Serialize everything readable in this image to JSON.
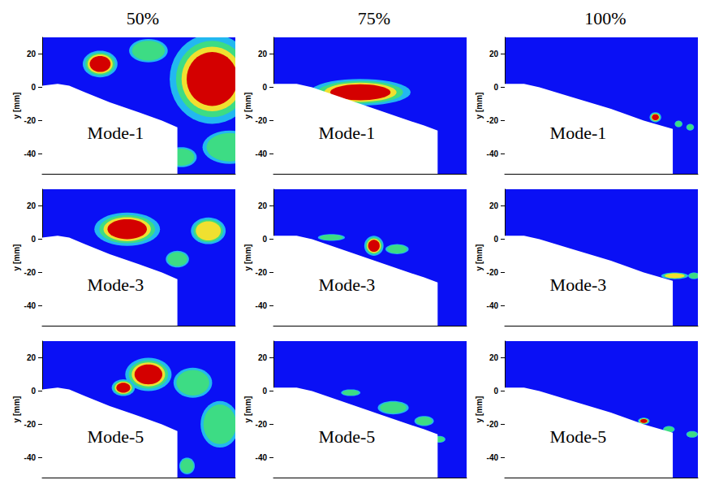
{
  "columns": [
    "50%",
    "75%",
    "100%"
  ],
  "chart_data": [
    {
      "type": "contour",
      "title": "Mode-1",
      "y_label": "y [mm]",
      "xlim": [
        0,
        100
      ],
      "ylim": [
        -52,
        30
      ],
      "yticks": [
        -40,
        -20,
        0,
        20
      ],
      "tick_labels": "y",
      "body": [
        [
          0,
          1
        ],
        [
          8,
          2
        ],
        [
          14,
          1
        ],
        [
          22,
          -3
        ],
        [
          35,
          -9
        ],
        [
          50,
          -15
        ],
        [
          62,
          -20
        ],
        [
          70,
          -24
        ],
        [
          70,
          -60
        ],
        [
          0,
          -60
        ]
      ],
      "regions": [
        {
          "x": 88,
          "y": 5,
          "rx": 22,
          "ry": 27,
          "level": 1
        },
        {
          "x": 30,
          "y": 14,
          "rx": 9,
          "ry": 8,
          "level": 1
        },
        {
          "x": 97,
          "y": -36,
          "rx": 14,
          "ry": 10,
          "level": 0.5
        },
        {
          "x": 55,
          "y": 22,
          "rx": 10,
          "ry": 7,
          "level": 0.4
        },
        {
          "x": 72,
          "y": -42,
          "rx": 8,
          "ry": 6,
          "level": 0.3
        }
      ]
    },
    {
      "type": "contour",
      "title": "Mode-1",
      "y_label": "y [mm]",
      "xlim": [
        0,
        100
      ],
      "ylim": [
        -52,
        30
      ],
      "yticks": [
        -40,
        -20,
        0,
        20
      ],
      "tick_labels": "y",
      "body": [
        [
          0,
          2
        ],
        [
          12,
          2
        ],
        [
          20,
          0
        ],
        [
          35,
          -6
        ],
        [
          50,
          -12
        ],
        [
          65,
          -18
        ],
        [
          78,
          -23
        ],
        [
          85,
          -26
        ],
        [
          85,
          -60
        ],
        [
          0,
          -60
        ]
      ],
      "regions": [
        {
          "x": 45,
          "y": -3,
          "rx": 26,
          "ry": 8,
          "level": 1
        }
      ],
      "_": null
    },
    {
      "type": "contour",
      "title": "Mode-1",
      "y_label": "y [mm]",
      "xlim": [
        0,
        100
      ],
      "ylim": [
        -52,
        30
      ],
      "yticks": [
        -40,
        -20,
        0,
        20
      ],
      "tick_labels": "y",
      "body": [
        [
          0,
          2
        ],
        [
          10,
          2
        ],
        [
          18,
          0
        ],
        [
          35,
          -6
        ],
        [
          55,
          -13
        ],
        [
          72,
          -20
        ],
        [
          87,
          -25
        ],
        [
          87,
          -60
        ],
        [
          0,
          -60
        ]
      ],
      "regions": [
        {
          "x": 78,
          "y": -18,
          "rx": 3,
          "ry": 3,
          "level": 1
        },
        {
          "x": 90,
          "y": -22,
          "rx": 2,
          "ry": 2,
          "level": 0.3
        },
        {
          "x": 96,
          "y": -24,
          "rx": 2,
          "ry": 2,
          "level": 0.3
        }
      ]
    },
    {
      "type": "contour",
      "title": "Mode-3",
      "y_label": "y [mm]",
      "xlim": [
        0,
        100
      ],
      "ylim": [
        -52,
        30
      ],
      "yticks": [
        -40,
        -20,
        0,
        20
      ],
      "tick_labels": "y",
      "body": [
        [
          0,
          1
        ],
        [
          8,
          2
        ],
        [
          14,
          1
        ],
        [
          22,
          -3
        ],
        [
          35,
          -9
        ],
        [
          50,
          -15
        ],
        [
          62,
          -20
        ],
        [
          70,
          -24
        ],
        [
          70,
          -60
        ],
        [
          0,
          -60
        ]
      ],
      "regions": [
        {
          "x": 44,
          "y": 6,
          "rx": 17,
          "ry": 10,
          "level": 1
        },
        {
          "x": 86,
          "y": 5,
          "rx": 9,
          "ry": 8,
          "level": 0.6
        },
        {
          "x": 70,
          "y": -12,
          "rx": 6,
          "ry": 5,
          "level": 0.3
        }
      ]
    },
    {
      "type": "contour",
      "title": "Mode-3",
      "y_label": "y [mm]",
      "xlim": [
        0,
        100
      ],
      "ylim": [
        -52,
        30
      ],
      "yticks": [
        -40,
        -20,
        0,
        20
      ],
      "tick_labels": "y",
      "body": [
        [
          0,
          2
        ],
        [
          12,
          2
        ],
        [
          20,
          0
        ],
        [
          35,
          -6
        ],
        [
          50,
          -12
        ],
        [
          65,
          -18
        ],
        [
          78,
          -23
        ],
        [
          85,
          -26
        ],
        [
          85,
          -60
        ],
        [
          0,
          -60
        ]
      ],
      "regions": [
        {
          "x": 52,
          "y": -4,
          "rx": 5,
          "ry": 6,
          "level": 1
        },
        {
          "x": 30,
          "y": 1,
          "rx": 7,
          "ry": 2,
          "level": 0.4
        },
        {
          "x": 64,
          "y": -6,
          "rx": 6,
          "ry": 3,
          "level": 0.4
        }
      ]
    },
    {
      "type": "contour",
      "title": "Mode-3",
      "y_label": "y [mm]",
      "xlim": [
        0,
        100
      ],
      "ylim": [
        -52,
        30
      ],
      "yticks": [
        -40,
        -20,
        0,
        20
      ],
      "tick_labels": "y",
      "body": [
        [
          0,
          2
        ],
        [
          10,
          2
        ],
        [
          18,
          0
        ],
        [
          35,
          -6
        ],
        [
          55,
          -13
        ],
        [
          72,
          -20
        ],
        [
          87,
          -25
        ],
        [
          87,
          -60
        ],
        [
          0,
          -60
        ]
      ],
      "regions": [
        {
          "x": 88,
          "y": -22,
          "rx": 7,
          "ry": 2,
          "level": 0.6
        },
        {
          "x": 98,
          "y": -22,
          "rx": 3,
          "ry": 2,
          "level": 0.3
        }
      ]
    },
    {
      "type": "contour",
      "title": "Mode-5",
      "y_label": "y [mm]",
      "xlim": [
        0,
        100
      ],
      "ylim": [
        -52,
        30
      ],
      "yticks": [
        -40,
        -20,
        0,
        20
      ],
      "tick_labels": "y",
      "body": [
        [
          0,
          1
        ],
        [
          8,
          2
        ],
        [
          14,
          1
        ],
        [
          22,
          -3
        ],
        [
          35,
          -9
        ],
        [
          50,
          -15
        ],
        [
          62,
          -20
        ],
        [
          70,
          -24
        ],
        [
          70,
          -60
        ],
        [
          0,
          -60
        ]
      ],
      "regions": [
        {
          "x": 55,
          "y": 10,
          "rx": 12,
          "ry": 10,
          "level": 1
        },
        {
          "x": 42,
          "y": 2,
          "rx": 6,
          "ry": 5,
          "level": 0.9
        },
        {
          "x": 78,
          "y": 5,
          "rx": 10,
          "ry": 9,
          "level": 0.5
        },
        {
          "x": 92,
          "y": -20,
          "rx": 10,
          "ry": 14,
          "level": 0.4
        },
        {
          "x": 75,
          "y": -45,
          "rx": 4,
          "ry": 5,
          "level": 0.3
        }
      ]
    },
    {
      "type": "contour",
      "title": "Mode-5",
      "y_label": "y [mm]",
      "xlim": [
        0,
        100
      ],
      "ylim": [
        -52,
        30
      ],
      "yticks": [
        -40,
        -20,
        0,
        20
      ],
      "tick_labels": "y",
      "body": [
        [
          0,
          2
        ],
        [
          12,
          2
        ],
        [
          20,
          0
        ],
        [
          35,
          -6
        ],
        [
          50,
          -12
        ],
        [
          65,
          -18
        ],
        [
          78,
          -23
        ],
        [
          85,
          -26
        ],
        [
          85,
          -60
        ],
        [
          0,
          -60
        ]
      ],
      "regions": [
        {
          "x": 62,
          "y": -10,
          "rx": 8,
          "ry": 4,
          "level": 0.5
        },
        {
          "x": 40,
          "y": -1,
          "rx": 5,
          "ry": 2,
          "level": 0.3
        },
        {
          "x": 78,
          "y": -18,
          "rx": 5,
          "ry": 3,
          "level": 0.3
        },
        {
          "x": 86,
          "y": -29,
          "rx": 3,
          "ry": 2,
          "level": 0.3
        }
      ]
    },
    {
      "type": "contour",
      "title": "Mode-5",
      "y_label": "y [mm]",
      "xlim": [
        0,
        100
      ],
      "ylim": [
        -52,
        30
      ],
      "yticks": [
        -40,
        -20,
        0,
        20
      ],
      "tick_labels": "y",
      "body": [
        [
          0,
          2
        ],
        [
          10,
          2
        ],
        [
          18,
          0
        ],
        [
          35,
          -6
        ],
        [
          55,
          -13
        ],
        [
          72,
          -20
        ],
        [
          87,
          -25
        ],
        [
          87,
          -60
        ],
        [
          0,
          -60
        ]
      ],
      "regions": [
        {
          "x": 72,
          "y": -18,
          "rx": 3,
          "ry": 2,
          "level": 0.8
        },
        {
          "x": 85,
          "y": -23,
          "rx": 3,
          "ry": 2,
          "level": 0.5
        },
        {
          "x": 97,
          "y": -26,
          "rx": 3,
          "ry": 2,
          "level": 0.5
        }
      ]
    }
  ]
}
